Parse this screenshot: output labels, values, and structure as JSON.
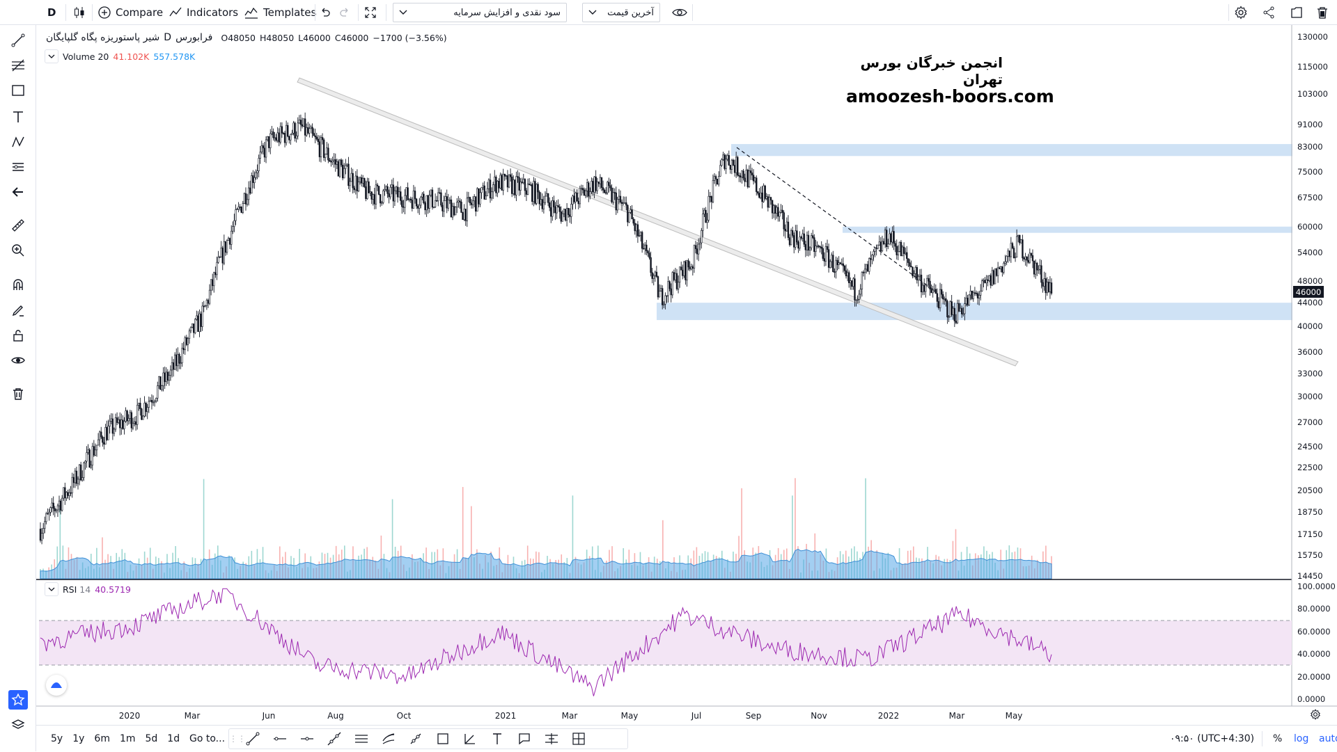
{
  "toolbar": {
    "interval": "D",
    "compare_label": "Compare",
    "indicators_label": "Indicators",
    "templates_label": "Templates",
    "dropdown1": "سود نقدی و افزایش سرمایه",
    "dropdown2": "آخرین قیمت"
  },
  "legend": {
    "symbol": "شیر پاستوریزه پگاه گلپایگان",
    "interval": "D",
    "exchange": "فرابورس",
    "o_label": "O",
    "o": "48050",
    "h_label": "H",
    "h": "48050",
    "l_label": "L",
    "l": "46000",
    "c_label": "C",
    "c": "46000",
    "change": "−1700 (−3.56%)"
  },
  "volume": {
    "label": "Volume",
    "period": "20",
    "value1": "41.102K",
    "value2": "557.578K"
  },
  "rsi": {
    "label": "RSI",
    "period": "14",
    "value": "40.5719"
  },
  "watermark": {
    "line1": "انجمن خبرگان بورس تهران",
    "line2": "amoozesh-boors.com"
  },
  "price_axis": [
    "130000",
    "115000",
    "103000",
    "91000",
    "83000",
    "75000",
    "67500",
    "60000",
    "54000",
    "48000",
    "44000",
    "40000",
    "36000",
    "33000",
    "30000",
    "27000",
    "24500",
    "22500",
    "20500",
    "18750",
    "17150",
    "15750",
    "14450"
  ],
  "current_price": "46000",
  "rsi_axis": [
    "100.0000",
    "80.0000",
    "60.0000",
    "40.0000",
    "20.0000",
    "0.0000"
  ],
  "time_axis": [
    "2020",
    "Mar",
    "Jun",
    "Aug",
    "Oct",
    "2021",
    "Mar",
    "May",
    "Jul",
    "Sep",
    "Nov",
    "2022",
    "Mar",
    "May"
  ],
  "bottom": {
    "ranges": [
      "5y",
      "1y",
      "6m",
      "1m",
      "5d",
      "1d"
    ],
    "goto": "Go to...",
    "clock": "۰۹:۵۰ (UTC+4:30)",
    "percent": "%",
    "log": "log",
    "auto": "auto"
  },
  "colors": {
    "accent": "#2962ff",
    "up": "#26a69a",
    "down": "#ef5350",
    "zone": "#cfe2f5",
    "rsi_line": "#9c27b0",
    "rsi_band": "#f3e5f5",
    "volume_ma": "#58a7e8"
  },
  "chart_data": {
    "type": "candlestick",
    "series": [
      {
        "name": "price",
        "x": [
          "2019-11",
          "2019-12",
          "2020-01",
          "2020-02",
          "2020-03",
          "2020-04",
          "2020-05",
          "2020-06",
          "2020-07",
          "2020-08",
          "2020-09",
          "2020-10",
          "2020-11",
          "2020-12",
          "2021-01",
          "2021-02",
          "2021-03",
          "2021-04",
          "2021-05",
          "2021-06",
          "2021-07",
          "2021-08",
          "2021-09",
          "2021-10",
          "2021-11",
          "2021-12",
          "2022-01",
          "2022-02",
          "2022-03",
          "2022-04",
          "2022-05",
          "2022-06"
        ],
        "values": [
          17500,
          21000,
          26000,
          28000,
          33000,
          42000,
          62000,
          85000,
          90000,
          78000,
          69000,
          68000,
          67000,
          64000,
          72000,
          70000,
          63000,
          72000,
          64000,
          45000,
          52000,
          80000,
          70000,
          58000,
          54000,
          46000,
          58000,
          48000,
          42000,
          47000,
          56000,
          46000
        ]
      },
      {
        "name": "RSI",
        "x": [
          "2019-11",
          "2020-02",
          "2020-06",
          "2020-09",
          "2020-12",
          "2021-03",
          "2021-06",
          "2021-08",
          "2021-11",
          "2022-02",
          "2022-05",
          "2022-06"
        ],
        "values": [
          50,
          65,
          95,
          30,
          20,
          60,
          10,
          75,
          45,
          35,
          75,
          40
        ]
      }
    ],
    "zones": [
      [
        80000,
        84000
      ],
      [
        58500,
        60000
      ],
      [
        41000,
        44000
      ]
    ],
    "rsi_bands": [
      30,
      70
    ]
  }
}
